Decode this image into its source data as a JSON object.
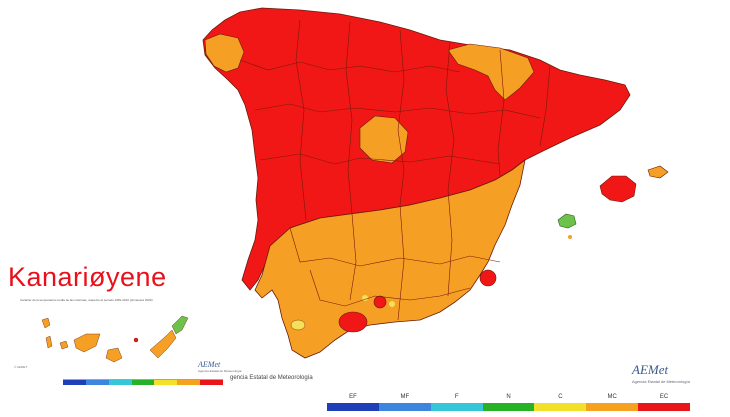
{
  "title": "Kanariøyene",
  "inset_caption": "Carácter de la temperatura media de las máximas, respecto al periodo 1981-2010 (primavera 2020)",
  "footer_text": "gencia Estatal de Meteorología",
  "inset_small_label": "© AEMET",
  "logo_wordmark": "AEMet",
  "logo_agency": "Agencia Estatal de Meteorología",
  "legend": [
    {
      "code": "EF",
      "color": "#1f3fb8"
    },
    {
      "code": "MF",
      "color": "#3d86e0"
    },
    {
      "code": "F",
      "color": "#35c6d8"
    },
    {
      "code": "N",
      "color": "#27b127"
    },
    {
      "code": "C",
      "color": "#f2e02a"
    },
    {
      "code": "MC",
      "color": "#f7a21e"
    },
    {
      "code": "EC",
      "color": "#e8151b"
    }
  ],
  "colors": {
    "extremely_warm": "#f01716",
    "very_warm": "#f5a025",
    "warm": "#f5e05a",
    "normal": "#6cc24a",
    "border": "#6a1a0a"
  }
}
